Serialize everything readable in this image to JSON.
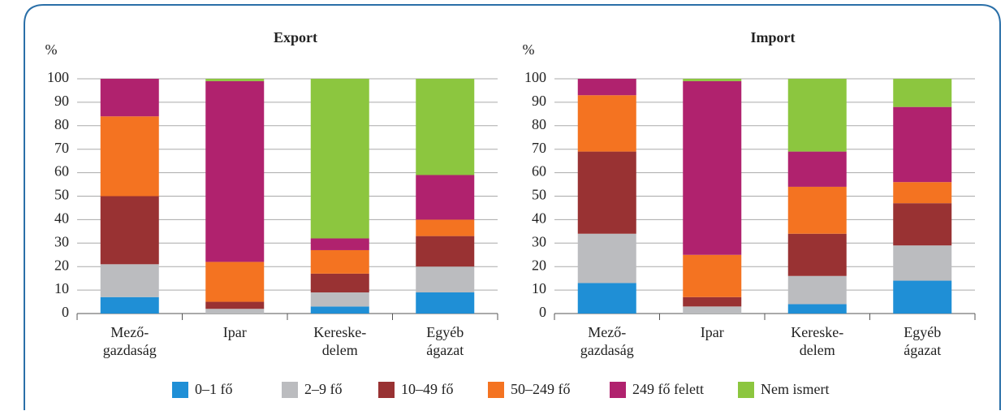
{
  "chart_data": [
    {
      "type": "stacked_bar",
      "title": "Export",
      "y_label": "%",
      "categories": [
        [
          "Mező-",
          "gazdaság"
        ],
        [
          "Ipar"
        ],
        [
          "Kereske-",
          "delem"
        ],
        [
          "Egyéb",
          "ágazat"
        ]
      ],
      "series": [
        {
          "name": "0–1 fő",
          "color": "#1f8fd6",
          "values": [
            7,
            0,
            3,
            9
          ]
        },
        {
          "name": "2–9 fő",
          "color": "#bbbcbf",
          "values": [
            14,
            2,
            6,
            11
          ]
        },
        {
          "name": "10–49 fő",
          "color": "#993233",
          "values": [
            29,
            3,
            8,
            13
          ]
        },
        {
          "name": "50–249 fő",
          "color": "#f47321",
          "values": [
            34,
            17,
            10,
            7
          ]
        },
        {
          "name": "249 fő felett",
          "color": "#b0226e",
          "values": [
            16,
            77,
            5,
            19
          ]
        },
        {
          "name": "Nem ismert",
          "color": "#8cc63f",
          "values": [
            0,
            1,
            68,
            41
          ]
        }
      ],
      "ylim": [
        0,
        100
      ],
      "yticks": [
        0,
        10,
        20,
        30,
        40,
        50,
        60,
        70,
        80,
        90,
        100
      ],
      "grid": true
    },
    {
      "type": "stacked_bar",
      "title": "Import",
      "y_label": "%",
      "categories": [
        [
          "Mező-",
          "gazdaság"
        ],
        [
          "Ipar"
        ],
        [
          "Kereske-",
          "delem"
        ],
        [
          "Egyéb",
          "ágazat"
        ]
      ],
      "series": [
        {
          "name": "0–1 fő",
          "color": "#1f8fd6",
          "values": [
            13,
            0,
            4,
            14
          ]
        },
        {
          "name": "2–9 fő",
          "color": "#bbbcbf",
          "values": [
            21,
            3,
            12,
            15
          ]
        },
        {
          "name": "10–49 fő",
          "color": "#993233",
          "values": [
            35,
            4,
            18,
            18
          ]
        },
        {
          "name": "50–249 fő",
          "color": "#f47321",
          "values": [
            24,
            18,
            20,
            9
          ]
        },
        {
          "name": "249 fő felett",
          "color": "#b0226e",
          "values": [
            7,
            74,
            15,
            32
          ]
        },
        {
          "name": "Nem ismert",
          "color": "#8cc63f",
          "values": [
            0,
            1,
            31,
            12
          ]
        }
      ],
      "ylim": [
        0,
        100
      ],
      "yticks": [
        0,
        10,
        20,
        30,
        40,
        50,
        60,
        70,
        80,
        90,
        100
      ],
      "grid": true
    }
  ]
}
